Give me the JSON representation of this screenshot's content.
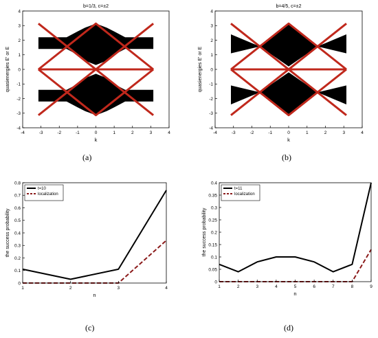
{
  "captions": [
    "(a)",
    "(b)",
    "(c)",
    "(d)"
  ],
  "chart_data": [
    {
      "type": "line",
      "panel": "a",
      "title": "b=1/3, c=±2",
      "xlabel": "k",
      "ylabel": "quasienergies E' or E",
      "xlim": [
        -4,
        4
      ],
      "ylim": [
        -4,
        4
      ],
      "xticks": [
        -4,
        -3,
        -2,
        -1,
        0,
        1,
        2,
        3,
        4
      ],
      "yticks": [
        -4,
        -3,
        -2,
        -1,
        0,
        1,
        2,
        3,
        4
      ],
      "bands": [
        {
          "color": "#000000",
          "x": [
            -3.14,
            -2.5,
            -1.6,
            -1.0,
            -0.6,
            0,
            0.6,
            1.0,
            1.6,
            2.5,
            3.14
          ],
          "upper": [
            2.2,
            2.2,
            2.2,
            2.6,
            2.85,
            3.14,
            2.85,
            2.6,
            2.2,
            2.2,
            2.2
          ],
          "lower": [
            1.4,
            1.4,
            1.4,
            1.0,
            0.6,
            0.3,
            0.6,
            1.0,
            1.4,
            1.4,
            1.4
          ]
        },
        {
          "color": "#000000",
          "x": [
            -3.14,
            -2.5,
            -1.6,
            -1.0,
            -0.6,
            0,
            0.6,
            1.0,
            1.6,
            2.5,
            3.14
          ],
          "upper": [
            -1.4,
            -1.4,
            -1.4,
            -1.0,
            -0.6,
            -0.3,
            -0.6,
            -1.0,
            -1.4,
            -1.4,
            -1.4
          ],
          "lower": [
            -2.2,
            -2.2,
            -2.2,
            -2.6,
            -2.85,
            -3.14,
            -2.85,
            -2.6,
            -2.2,
            -2.2,
            -2.2
          ]
        }
      ],
      "series": [
        {
          "color": "#c0281c",
          "x": [
            -3.14,
            3.14
          ],
          "y": [
            3.14,
            -3.14
          ]
        },
        {
          "color": "#c0281c",
          "x": [
            -3.14,
            3.14
          ],
          "y": [
            -3.14,
            3.14
          ]
        },
        {
          "color": "#c0281c",
          "x": [
            -3.14,
            0,
            3.14
          ],
          "y": [
            0,
            3.14,
            0
          ]
        },
        {
          "color": "#c0281c",
          "x": [
            -3.14,
            0,
            3.14
          ],
          "y": [
            0,
            -3.14,
            0
          ]
        },
        {
          "color": "#c0281c",
          "x": [
            -3.14,
            3.14
          ],
          "y": [
            0,
            0
          ]
        }
      ]
    },
    {
      "type": "line",
      "panel": "b",
      "title": "b=4/5, c=±2",
      "xlabel": "k",
      "ylabel": "quasienergies E' or E",
      "xlim": [
        -4,
        4
      ],
      "ylim": [
        -4,
        4
      ],
      "xticks": [
        -4,
        -3,
        -2,
        -1,
        0,
        1,
        2,
        3,
        4
      ],
      "yticks": [
        -4,
        -3,
        -2,
        -1,
        0,
        1,
        2,
        3,
        4
      ],
      "bands": [
        {
          "color": "#000000",
          "x": [
            -3.14,
            -1.57,
            0,
            1.57,
            3.14
          ],
          "upper": [
            2.4,
            1.57,
            3.14,
            1.57,
            2.4
          ],
          "lower": [
            1.1,
            1.57,
            0.2,
            1.57,
            1.1
          ]
        },
        {
          "color": "#000000",
          "x": [
            -3.14,
            -1.57,
            0,
            1.57,
            3.14
          ],
          "upper": [
            -1.1,
            -1.57,
            -0.2,
            -1.57,
            -1.1
          ],
          "lower": [
            -2.4,
            -1.57,
            -3.14,
            -1.57,
            -2.4
          ]
        }
      ],
      "series": [
        {
          "color": "#c0281c",
          "x": [
            -3.14,
            3.14
          ],
          "y": [
            3.14,
            -3.14
          ]
        },
        {
          "color": "#c0281c",
          "x": [
            -3.14,
            3.14
          ],
          "y": [
            -3.14,
            3.14
          ]
        },
        {
          "color": "#c0281c",
          "x": [
            -3.14,
            0,
            3.14
          ],
          "y": [
            0,
            3.14,
            0
          ]
        },
        {
          "color": "#c0281c",
          "x": [
            -3.14,
            0,
            3.14
          ],
          "y": [
            0,
            -3.14,
            0
          ]
        },
        {
          "color": "#c0281c",
          "x": [
            -3.14,
            3.14
          ],
          "y": [
            0,
            0
          ]
        }
      ]
    },
    {
      "type": "line",
      "panel": "c",
      "title": "",
      "xlabel": "n",
      "ylabel": "the success probability",
      "xlim": [
        1,
        4
      ],
      "ylim": [
        0,
        0.8
      ],
      "xticks": [
        1,
        2,
        3,
        4
      ],
      "yticks": [
        0,
        0.1,
        0.2,
        0.3,
        0.4,
        0.5,
        0.6,
        0.7,
        0.8
      ],
      "legend_position": "top-left",
      "series": [
        {
          "name": "t=10",
          "color": "#000000",
          "dash": "solid",
          "x": [
            1,
            2,
            3,
            4
          ],
          "y": [
            0.11,
            0.03,
            0.11,
            0.74
          ]
        },
        {
          "name": "localization",
          "color": "#8b1a1a",
          "dash": "dashed",
          "x": [
            1,
            2,
            3,
            4
          ],
          "y": [
            0,
            0,
            0,
            0.34
          ]
        }
      ]
    },
    {
      "type": "line",
      "panel": "d",
      "title": "",
      "xlabel": "n",
      "ylabel": "the success probability",
      "xlim": [
        1,
        9
      ],
      "ylim": [
        0,
        0.4
      ],
      "xticks": [
        1,
        2,
        3,
        4,
        5,
        6,
        7,
        8,
        9
      ],
      "yticks": [
        0,
        0.05,
        0.1,
        0.15,
        0.2,
        0.25,
        0.3,
        0.35,
        0.4
      ],
      "legend_position": "top-left",
      "series": [
        {
          "name": "t=11",
          "color": "#000000",
          "dash": "solid",
          "x": [
            1,
            2,
            3,
            4,
            5,
            6,
            7,
            8,
            9
          ],
          "y": [
            0.07,
            0.04,
            0.08,
            0.1,
            0.1,
            0.08,
            0.04,
            0.07,
            0.4
          ]
        },
        {
          "name": "localization",
          "color": "#8b1a1a",
          "dash": "dashed",
          "x": [
            1,
            2,
            3,
            4,
            5,
            6,
            7,
            8,
            9
          ],
          "y": [
            0,
            0,
            0,
            0,
            0,
            0,
            0,
            0,
            0.13
          ]
        }
      ]
    }
  ]
}
